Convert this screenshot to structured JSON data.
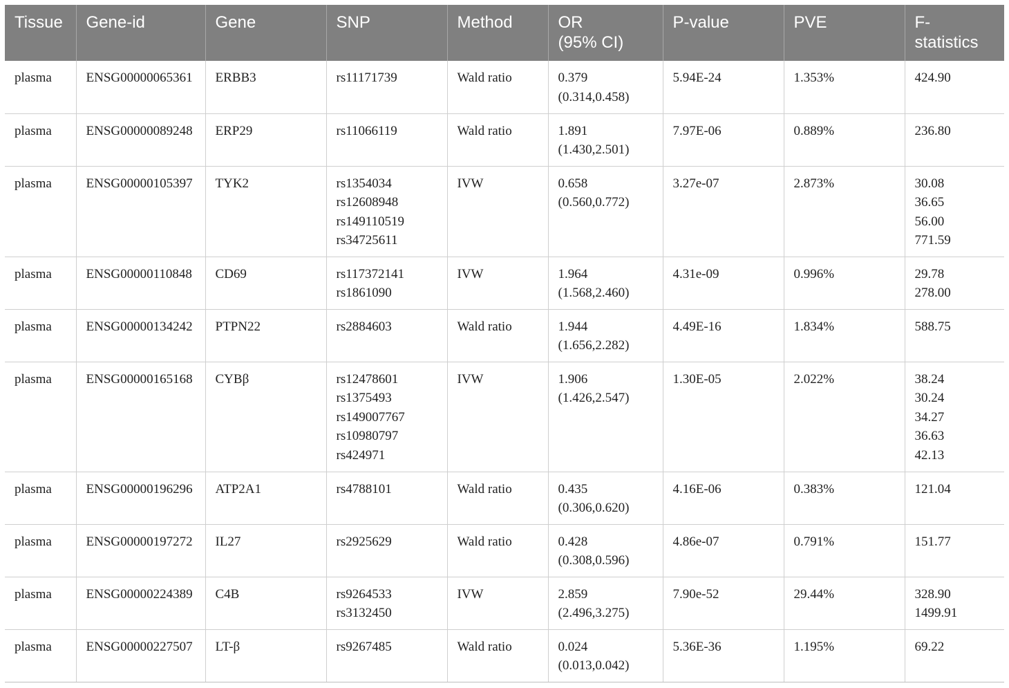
{
  "table": {
    "headers": [
      "Tissue",
      "Gene-id",
      "Gene",
      "SNP",
      "Method",
      "OR\n(95% CI)",
      "P-value",
      "PVE",
      "F-\nstatistics"
    ],
    "rows": [
      {
        "tissue": "plasma",
        "gene_id": "ENSG00000065361",
        "gene": "ERBB3",
        "snp": [
          "rs11171739"
        ],
        "method": "Wald ratio",
        "or_ci": [
          "0.379",
          "(0.314,0.458)"
        ],
        "p_value": "5.94E-24",
        "pve": "1.353%",
        "f_stats": [
          "424.90"
        ]
      },
      {
        "tissue": "plasma",
        "gene_id": "ENSG00000089248",
        "gene": "ERP29",
        "snp": [
          "rs11066119"
        ],
        "method": "Wald ratio",
        "or_ci": [
          "1.891",
          "(1.430,2.501)"
        ],
        "p_value": "7.97E-06",
        "pve": "0.889%",
        "f_stats": [
          "236.80"
        ]
      },
      {
        "tissue": "plasma",
        "gene_id": "ENSG00000105397",
        "gene": "TYK2",
        "snp": [
          "rs1354034",
          "rs12608948",
          "rs149110519",
          "rs34725611"
        ],
        "method": "IVW",
        "or_ci": [
          "0.658",
          "(0.560,0.772)"
        ],
        "p_value": "3.27e-07",
        "pve": "2.873%",
        "f_stats": [
          "30.08",
          "36.65",
          "56.00",
          "771.59"
        ]
      },
      {
        "tissue": "plasma",
        "gene_id": "ENSG00000110848",
        "gene": "CD69",
        "snp": [
          "rs117372141",
          "rs1861090"
        ],
        "method": "IVW",
        "or_ci": [
          "1.964",
          "(1.568,2.460)"
        ],
        "p_value": "4.31e-09",
        "pve": "0.996%",
        "f_stats": [
          "29.78",
          "278.00"
        ]
      },
      {
        "tissue": "plasma",
        "gene_id": "ENSG00000134242",
        "gene": "PTPN22",
        "snp": [
          "rs2884603"
        ],
        "method": "Wald ratio",
        "or_ci": [
          "1.944",
          "(1.656,2.282)"
        ],
        "p_value": "4.49E-16",
        "pve": "1.834%",
        "f_stats": [
          "588.75"
        ]
      },
      {
        "tissue": "plasma",
        "gene_id": "ENSG00000165168",
        "gene": "CYBβ",
        "snp": [
          "rs12478601",
          "rs1375493",
          "rs149007767",
          "rs10980797",
          "rs424971"
        ],
        "method": "IVW",
        "or_ci": [
          "1.906",
          "(1.426,2.547)"
        ],
        "p_value": "1.30E-05",
        "pve": "2.022%",
        "f_stats": [
          "38.24",
          "30.24",
          "34.27",
          "36.63",
          "42.13"
        ]
      },
      {
        "tissue": "plasma",
        "gene_id": "ENSG00000196296",
        "gene": "ATP2A1",
        "snp": [
          "rs4788101"
        ],
        "method": "Wald ratio",
        "or_ci": [
          "0.435",
          "(0.306,0.620)"
        ],
        "p_value": "4.16E-06",
        "pve": "0.383%",
        "f_stats": [
          "121.04"
        ]
      },
      {
        "tissue": "plasma",
        "gene_id": "ENSG00000197272",
        "gene": "IL27",
        "snp": [
          "rs2925629"
        ],
        "method": "Wald ratio",
        "or_ci": [
          "0.428",
          "(0.308,0.596)"
        ],
        "p_value": "4.86e-07",
        "pve": "0.791%",
        "f_stats": [
          "151.77"
        ]
      },
      {
        "tissue": "plasma",
        "gene_id": "ENSG00000224389",
        "gene": "C4B",
        "snp": [
          "rs9264533",
          "rs3132450"
        ],
        "method": "IVW",
        "or_ci": [
          "2.859",
          "(2.496,3.275)"
        ],
        "p_value": "7.90e-52",
        "pve": "29.44%",
        "f_stats": [
          "328.90",
          "1499.91"
        ]
      },
      {
        "tissue": "plasma",
        "gene_id": "ENSG00000227507",
        "gene": "LT-β",
        "snp": [
          "rs9267485"
        ],
        "method": "Wald ratio",
        "or_ci": [
          "0.024",
          "(0.013,0.042)"
        ],
        "p_value": "5.36E-36",
        "pve": "1.195%",
        "f_stats": [
          "69.22"
        ]
      }
    ]
  },
  "colors": {
    "header_bg": "#808080",
    "header_text": "#ffffff",
    "grid": "#cfcfcf",
    "body_text": "#222222"
  }
}
